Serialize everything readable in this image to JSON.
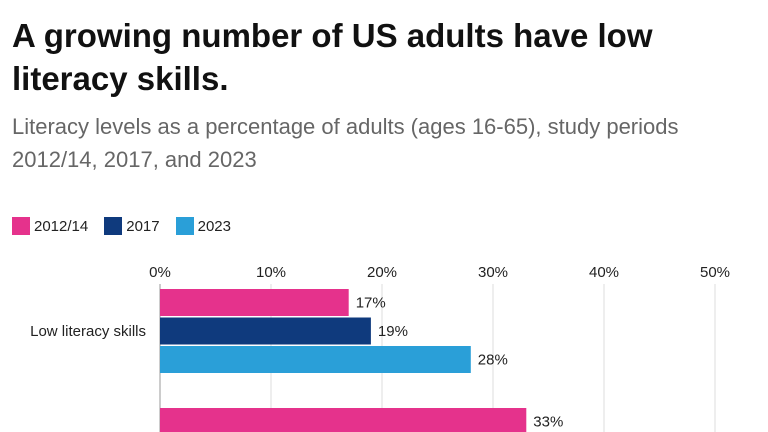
{
  "chart_data": {
    "type": "bar",
    "orientation": "horizontal",
    "title": "A growing number of US adults have low literacy skills.",
    "subtitle": "Literacy levels as a percentage of adults (ages 16-65), study periods 2012/14, 2017, and 2023",
    "categories": [
      "Low literacy skills",
      ""
    ],
    "series": [
      {
        "name": "2012/14",
        "color": "#e5328c",
        "values": [
          17,
          33
        ]
      },
      {
        "name": "2017",
        "color": "#0f3a7d",
        "values": [
          19,
          null
        ]
      },
      {
        "name": "2023",
        "color": "#2a9fd8",
        "values": [
          28,
          null
        ]
      }
    ],
    "xlim": [
      0,
      50
    ],
    "x_ticks": [
      "0%",
      "10%",
      "20%",
      "30%",
      "40%",
      "50%"
    ],
    "value_suffix": "%",
    "grid": true,
    "legend_position": "top-left"
  }
}
